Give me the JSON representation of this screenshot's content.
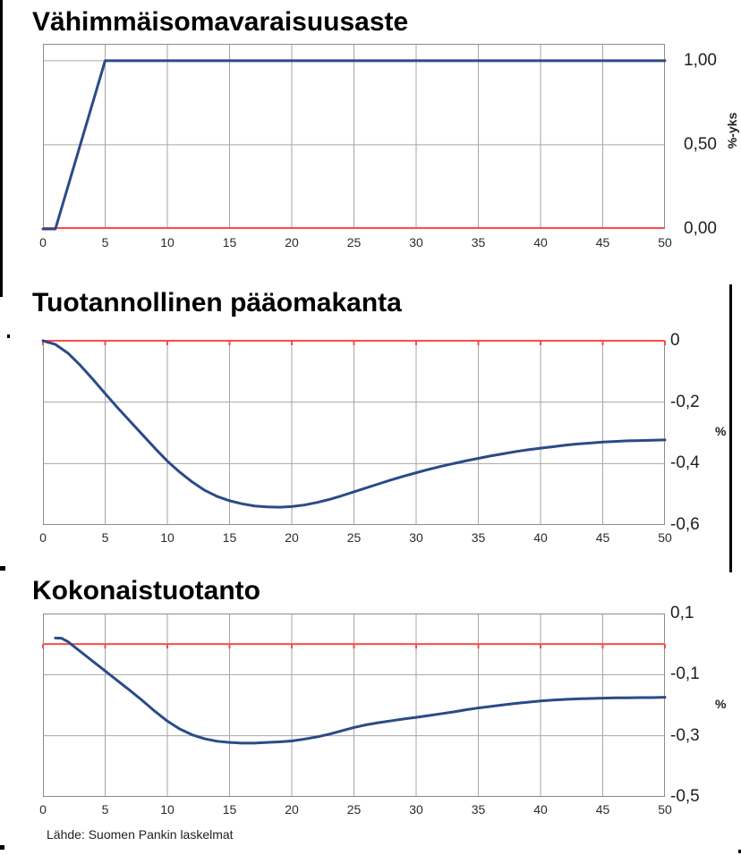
{
  "page": {
    "source_note": "Lähde: Suomen Pankin laskelmat"
  },
  "colors": {
    "series_blue": "#2a4b87",
    "zero_line_red": "#fb4b4b",
    "grid_gray": "#a6a6a6",
    "border_gray": "#8c8c8c",
    "text_black": "#000000"
  },
  "chart_data": [
    {
      "type": "line",
      "title": "Vähimmäisomavaraisuusaste",
      "unit_label": "%-yks",
      "xlim": [
        0,
        50
      ],
      "ylim": [
        0,
        1.1
      ],
      "xticks": [
        0,
        5,
        10,
        15,
        20,
        25,
        30,
        35,
        40,
        45,
        50
      ],
      "yticks": [
        {
          "value": 1.0,
          "label": "1,00"
        },
        {
          "value": 0.5,
          "label": "0,50"
        },
        {
          "value": 0.0,
          "label": "0,00"
        }
      ],
      "ygrid": [
        1.0,
        0.5
      ],
      "zero_line": 0.0,
      "zero_tick_marks": false,
      "borders": [
        "top",
        "left",
        "right"
      ],
      "grid": true,
      "legend": "none",
      "series": [
        {
          "name": "Vähimmäisomavaraisuusaste",
          "points": [
            [
              0,
              0
            ],
            [
              1,
              0
            ],
            [
              5,
              1.0
            ],
            [
              50,
              1.0
            ]
          ]
        }
      ]
    },
    {
      "type": "line",
      "title": "Tuotannollinen pääomakanta",
      "unit_label": "%",
      "xlim": [
        0,
        50
      ],
      "ylim": [
        -0.6,
        0
      ],
      "xticks": [
        0,
        5,
        10,
        15,
        20,
        25,
        30,
        35,
        40,
        45,
        50
      ],
      "yticks": [
        {
          "value": 0.0,
          "label": "0"
        },
        {
          "value": -0.2,
          "label": "-0,2"
        },
        {
          "value": -0.4,
          "label": "-0,4"
        },
        {
          "value": -0.6,
          "label": "-0,6"
        }
      ],
      "ygrid": [
        -0.2,
        -0.4
      ],
      "zero_line": 0.0,
      "zero_tick_marks": true,
      "borders": [
        "left",
        "right",
        "bottom"
      ],
      "grid": true,
      "legend": "none",
      "series": [
        {
          "name": "Tuotannollinen pääomakanta",
          "points": [
            [
              0,
              0
            ],
            [
              1,
              -0.012
            ],
            [
              2,
              -0.04
            ],
            [
              3,
              -0.08
            ],
            [
              4,
              -0.125
            ],
            [
              5,
              -0.172
            ],
            [
              6,
              -0.218
            ],
            [
              7,
              -0.262
            ],
            [
              8,
              -0.306
            ],
            [
              9,
              -0.35
            ],
            [
              10,
              -0.392
            ],
            [
              11,
              -0.428
            ],
            [
              12,
              -0.46
            ],
            [
              13,
              -0.487
            ],
            [
              14,
              -0.507
            ],
            [
              15,
              -0.521
            ],
            [
              16,
              -0.531
            ],
            [
              17,
              -0.538
            ],
            [
              18,
              -0.541
            ],
            [
              19,
              -0.542
            ],
            [
              20,
              -0.54
            ],
            [
              21,
              -0.535
            ],
            [
              22,
              -0.527
            ],
            [
              23,
              -0.517
            ],
            [
              24,
              -0.505
            ],
            [
              25,
              -0.492
            ],
            [
              26,
              -0.479
            ],
            [
              27,
              -0.466
            ],
            [
              28,
              -0.453
            ],
            [
              29,
              -0.441
            ],
            [
              30,
              -0.43
            ],
            [
              31,
              -0.419
            ],
            [
              32,
              -0.409
            ],
            [
              33,
              -0.4
            ],
            [
              34,
              -0.391
            ],
            [
              35,
              -0.383
            ],
            [
              36,
              -0.375
            ],
            [
              37,
              -0.368
            ],
            [
              38,
              -0.361
            ],
            [
              39,
              -0.355
            ],
            [
              40,
              -0.35
            ],
            [
              41,
              -0.345
            ],
            [
              42,
              -0.34
            ],
            [
              43,
              -0.336
            ],
            [
              44,
              -0.333
            ],
            [
              45,
              -0.33
            ],
            [
              46,
              -0.328
            ],
            [
              47,
              -0.326
            ],
            [
              48,
              -0.325
            ],
            [
              49,
              -0.324
            ],
            [
              50,
              -0.323
            ]
          ]
        }
      ]
    },
    {
      "type": "line",
      "title": "Kokonaistuotanto",
      "unit_label": "%",
      "xlim": [
        0,
        50
      ],
      "ylim": [
        -0.5,
        0.1
      ],
      "xticks": [
        0,
        5,
        10,
        15,
        20,
        25,
        30,
        35,
        40,
        45,
        50
      ],
      "yticks": [
        {
          "value": 0.1,
          "label": "0,1"
        },
        {
          "value": -0.1,
          "label": "-0,1"
        },
        {
          "value": -0.3,
          "label": "-0,3"
        },
        {
          "value": -0.5,
          "label": "-0,5"
        }
      ],
      "ygrid": [
        -0.1,
        -0.3
      ],
      "zero_line": 0.0,
      "zero_tick_marks": true,
      "borders": [
        "top",
        "left",
        "right",
        "bottom"
      ],
      "grid": true,
      "legend": "none",
      "series": [
        {
          "name": "Kokonaistuotanto",
          "points": [
            [
              1,
              0.02
            ],
            [
              1.5,
              0.019
            ],
            [
              2,
              0.008
            ],
            [
              3,
              -0.024
            ],
            [
              4,
              -0.056
            ],
            [
              5,
              -0.088
            ],
            [
              6,
              -0.12
            ],
            [
              7,
              -0.152
            ],
            [
              8,
              -0.185
            ],
            [
              9,
              -0.22
            ],
            [
              10,
              -0.252
            ],
            [
              11,
              -0.278
            ],
            [
              12,
              -0.297
            ],
            [
              13,
              -0.31
            ],
            [
              14,
              -0.318
            ],
            [
              15,
              -0.322
            ],
            [
              16,
              -0.324
            ],
            [
              17,
              -0.324
            ],
            [
              18,
              -0.322
            ],
            [
              19,
              -0.32
            ],
            [
              20,
              -0.317
            ],
            [
              21,
              -0.311
            ],
            [
              22,
              -0.304
            ],
            [
              23,
              -0.295
            ],
            [
              24,
              -0.284
            ],
            [
              25,
              -0.273
            ],
            [
              26,
              -0.264
            ],
            [
              27,
              -0.257
            ],
            [
              28,
              -0.251
            ],
            [
              29,
              -0.245
            ],
            [
              30,
              -0.24
            ],
            [
              31,
              -0.234
            ],
            [
              32,
              -0.228
            ],
            [
              33,
              -0.222
            ],
            [
              34,
              -0.215
            ],
            [
              35,
              -0.209
            ],
            [
              36,
              -0.204
            ],
            [
              37,
              -0.199
            ],
            [
              38,
              -0.194
            ],
            [
              39,
              -0.19
            ],
            [
              40,
              -0.186
            ],
            [
              41,
              -0.183
            ],
            [
              42,
              -0.181
            ],
            [
              43,
              -0.179
            ],
            [
              44,
              -0.178
            ],
            [
              45,
              -0.177
            ],
            [
              46,
              -0.176
            ],
            [
              47,
              -0.176
            ],
            [
              48,
              -0.175
            ],
            [
              49,
              -0.175
            ],
            [
              50,
              -0.174
            ]
          ]
        }
      ]
    }
  ]
}
